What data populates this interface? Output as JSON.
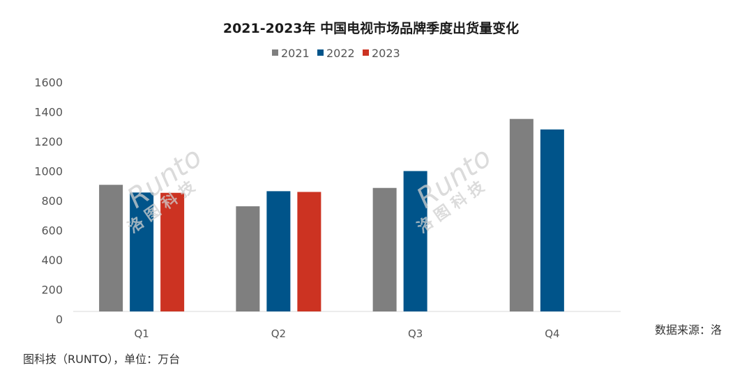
{
  "chart_data": {
    "type": "bar",
    "title": "2021-2023年 中国电视市场品牌季度出货量变化",
    "categories": [
      "Q1",
      "Q2",
      "Q3",
      "Q4"
    ],
    "series": [
      {
        "name": "2021",
        "color": "#7f7f7f",
        "values": [
          907,
          762,
          886,
          1352
        ]
      },
      {
        "name": "2022",
        "color": "#00548a",
        "values": [
          855,
          864,
          1000,
          1281
        ]
      },
      {
        "name": "2023",
        "color": "#cc3322",
        "values": [
          853,
          859,
          null,
          null
        ]
      }
    ],
    "yticks": [
      "0",
      "200",
      "400",
      "600",
      "800",
      "1000",
      "1200",
      "1400",
      "1600"
    ],
    "ylim": [
      0,
      1600
    ],
    "xlabel": "",
    "ylabel": "",
    "legend": "top-center",
    "grid": false,
    "source_line1": "数据来源：洛",
    "source_line2": "图科技（RUNTO），单位：万台",
    "watermark": {
      "brand": "Runto",
      "cn": "洛 图 科 技"
    }
  }
}
